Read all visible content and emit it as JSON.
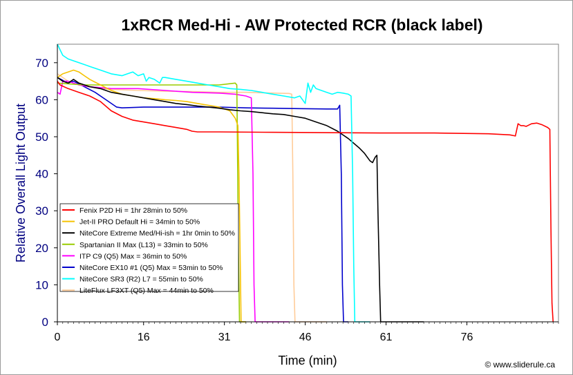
{
  "chart_data": {
    "type": "line",
    "title": "1xRCR Med-Hi - AW Protected RCR (black label)",
    "xlabel": "Time (min)",
    "ylabel": "Relative Overall Light Output",
    "credit": "© www.sliderule.ca",
    "xlim": [
      0,
      93
    ],
    "ylim": [
      0,
      75
    ],
    "x_ticks": [
      0,
      16,
      31,
      46,
      61,
      76
    ],
    "y_ticks": [
      0,
      10,
      20,
      30,
      40,
      50,
      60,
      70
    ],
    "grid": false,
    "legend_position": "bottom-left",
    "series": [
      {
        "name": "Fenix P2D Hi = 1hr 28min to 50%",
        "color": "#ff0000",
        "points": [
          [
            0,
            65
          ],
          [
            0.5,
            64
          ],
          [
            2,
            63
          ],
          [
            4,
            62
          ],
          [
            6,
            61
          ],
          [
            8,
            59.5
          ],
          [
            10,
            57
          ],
          [
            12,
            55.5
          ],
          [
            14,
            54.5
          ],
          [
            16,
            54
          ],
          [
            18,
            53.5
          ],
          [
            20,
            53
          ],
          [
            22,
            52.5
          ],
          [
            24,
            52
          ],
          [
            25,
            51.5
          ],
          [
            26,
            51.3
          ],
          [
            30,
            51.3
          ],
          [
            40,
            51.2
          ],
          [
            50,
            51.1
          ],
          [
            60,
            51.0
          ],
          [
            70,
            51.0
          ],
          [
            80,
            50.8
          ],
          [
            84,
            50.5
          ],
          [
            85,
            50.2
          ],
          [
            85.5,
            53.5
          ],
          [
            86,
            53
          ],
          [
            86.5,
            53
          ],
          [
            87,
            52.8
          ],
          [
            88,
            53.5
          ],
          [
            89,
            53.7
          ],
          [
            90,
            53.2
          ],
          [
            91,
            52.5
          ],
          [
            91.4,
            52
          ],
          [
            91.6,
            25
          ],
          [
            91.8,
            5
          ],
          [
            92,
            0
          ]
        ]
      },
      {
        "name": "Jet-II PRO Default Hi = 34min to 50%",
        "color": "#f5c200",
        "points": [
          [
            0,
            66
          ],
          [
            1,
            67
          ],
          [
            2,
            67.5
          ],
          [
            3,
            68
          ],
          [
            4,
            67.5
          ],
          [
            5,
            66.5
          ],
          [
            6,
            65.5
          ],
          [
            8,
            64
          ],
          [
            10,
            62.5
          ],
          [
            12,
            61.5
          ],
          [
            14,
            61
          ],
          [
            16,
            60.5
          ],
          [
            18,
            60.3
          ],
          [
            20,
            60
          ],
          [
            22,
            59.8
          ],
          [
            24,
            59.5
          ],
          [
            26,
            59
          ],
          [
            28,
            58.5
          ],
          [
            30,
            58
          ],
          [
            31,
            57.5
          ],
          [
            32,
            57
          ],
          [
            33,
            55
          ],
          [
            33.5,
            53
          ],
          [
            33.7,
            40
          ],
          [
            33.9,
            20
          ],
          [
            34.1,
            0
          ],
          [
            35,
            0
          ]
        ]
      },
      {
        "name": "NiteCore Extreme Med/Hi-ish = 1hr 0min to 50%",
        "color": "#000000",
        "points": [
          [
            0,
            66
          ],
          [
            1,
            65
          ],
          [
            2,
            64.5
          ],
          [
            3,
            65.5
          ],
          [
            4,
            64.5
          ],
          [
            6,
            63.5
          ],
          [
            8,
            63
          ],
          [
            10,
            62
          ],
          [
            12,
            61.5
          ],
          [
            14,
            61
          ],
          [
            16,
            60.5
          ],
          [
            18,
            60
          ],
          [
            20,
            59.5
          ],
          [
            22,
            59
          ],
          [
            24,
            58.7
          ],
          [
            26,
            58.3
          ],
          [
            28,
            58
          ],
          [
            30,
            57.7
          ],
          [
            32,
            57.3
          ],
          [
            34,
            57
          ],
          [
            36,
            56.8
          ],
          [
            38,
            56.5
          ],
          [
            40,
            56.2
          ],
          [
            42,
            56
          ],
          [
            44,
            55.5
          ],
          [
            46,
            55
          ],
          [
            48,
            54
          ],
          [
            50,
            53
          ],
          [
            52,
            51.5
          ],
          [
            54,
            49.5
          ],
          [
            56,
            47
          ],
          [
            57,
            45.5
          ],
          [
            58,
            43.5
          ],
          [
            58.5,
            43
          ],
          [
            59,
            44.5
          ],
          [
            59.3,
            45
          ],
          [
            59.5,
            30
          ],
          [
            59.8,
            10
          ],
          [
            60,
            0
          ],
          [
            68,
            0
          ]
        ]
      },
      {
        "name": "Spartanian II Max (L13) = 33min to 50%",
        "color": "#99cc00",
        "points": [
          [
            0,
            64.5
          ],
          [
            5,
            64
          ],
          [
            10,
            64
          ],
          [
            15,
            64
          ],
          [
            20,
            64
          ],
          [
            25,
            64
          ],
          [
            30,
            64
          ],
          [
            33,
            64.5
          ],
          [
            33.3,
            64
          ],
          [
            33.4,
            50
          ],
          [
            33.6,
            20
          ],
          [
            33.8,
            0
          ],
          [
            35,
            0
          ]
        ]
      },
      {
        "name": "ITP C9 (Q5) Max = 36min to 50%",
        "color": "#ff00ff",
        "points": [
          [
            0,
            62
          ],
          [
            0.5,
            61.5
          ],
          [
            1,
            65
          ],
          [
            2,
            65
          ],
          [
            4,
            64
          ],
          [
            6,
            63.5
          ],
          [
            10,
            63
          ],
          [
            15,
            63
          ],
          [
            20,
            62.5
          ],
          [
            25,
            62
          ],
          [
            30,
            61.8
          ],
          [
            33,
            61.5
          ],
          [
            35,
            61
          ],
          [
            36,
            60.5
          ],
          [
            36.3,
            40
          ],
          [
            36.5,
            10
          ],
          [
            36.7,
            0
          ],
          [
            43,
            0
          ]
        ]
      },
      {
        "name": "NiteCore EX10 #1 (Q5) Max = 53min to 50%",
        "color": "#0000cc",
        "points": [
          [
            0,
            66
          ],
          [
            2,
            64.5
          ],
          [
            3,
            65
          ],
          [
            5,
            63.5
          ],
          [
            7,
            62
          ],
          [
            9,
            60
          ],
          [
            11,
            58
          ],
          [
            12,
            57.8
          ],
          [
            16,
            58
          ],
          [
            20,
            58
          ],
          [
            25,
            58
          ],
          [
            30,
            58
          ],
          [
            35,
            57.8
          ],
          [
            40,
            57.7
          ],
          [
            45,
            57.6
          ],
          [
            50,
            57.5
          ],
          [
            52,
            57.5
          ],
          [
            52.4,
            58.5
          ],
          [
            52.7,
            40
          ],
          [
            52.9,
            10
          ],
          [
            53.1,
            0
          ],
          [
            54,
            0
          ]
        ]
      },
      {
        "name": "NiteCore SR3 (R2) L7 = 55min to 50%",
        "color": "#00ffff",
        "points": [
          [
            0,
            75
          ],
          [
            1,
            72
          ],
          [
            2,
            71
          ],
          [
            4,
            70
          ],
          [
            6,
            69
          ],
          [
            8,
            68
          ],
          [
            10,
            67
          ],
          [
            12,
            66.5
          ],
          [
            13,
            67
          ],
          [
            14,
            67.5
          ],
          [
            15,
            66.5
          ],
          [
            16,
            67
          ],
          [
            16.5,
            65
          ],
          [
            17,
            66
          ],
          [
            18,
            65.5
          ],
          [
            19,
            64.5
          ],
          [
            19.5,
            66
          ],
          [
            20,
            66
          ],
          [
            22,
            65.5
          ],
          [
            24,
            65
          ],
          [
            26,
            64.5
          ],
          [
            28,
            64
          ],
          [
            30,
            63.5
          ],
          [
            32,
            63
          ],
          [
            34,
            62.8
          ],
          [
            36,
            62.5
          ],
          [
            38,
            62
          ],
          [
            40,
            61.5
          ],
          [
            42,
            61
          ],
          [
            44,
            60.5
          ],
          [
            45,
            61
          ],
          [
            46,
            59
          ],
          [
            46.5,
            64.5
          ],
          [
            47,
            62
          ],
          [
            47.5,
            64
          ],
          [
            48,
            63
          ],
          [
            49,
            62.5
          ],
          [
            50,
            62
          ],
          [
            51,
            61.5
          ],
          [
            52,
            62
          ],
          [
            53,
            61.8
          ],
          [
            54,
            61.5
          ],
          [
            54.5,
            61
          ],
          [
            54.8,
            40
          ],
          [
            55,
            15
          ],
          [
            55.2,
            0
          ],
          [
            58,
            0
          ]
        ]
      },
      {
        "name": "LiteFlux LF3XT (Q5) Max = 44min to 50%",
        "color": "#ffcc99",
        "points": [
          [
            0,
            67
          ],
          [
            2,
            65
          ],
          [
            4,
            64
          ],
          [
            6,
            63.5
          ],
          [
            8,
            63
          ],
          [
            10,
            62.8
          ],
          [
            15,
            62.5
          ],
          [
            20,
            62.3
          ],
          [
            25,
            62.2
          ],
          [
            30,
            62
          ],
          [
            35,
            62
          ],
          [
            40,
            61.8
          ],
          [
            43,
            61.7
          ],
          [
            43.5,
            61.5
          ],
          [
            43.7,
            40
          ],
          [
            43.9,
            10
          ],
          [
            44.1,
            0
          ],
          [
            50,
            0
          ]
        ]
      }
    ]
  }
}
